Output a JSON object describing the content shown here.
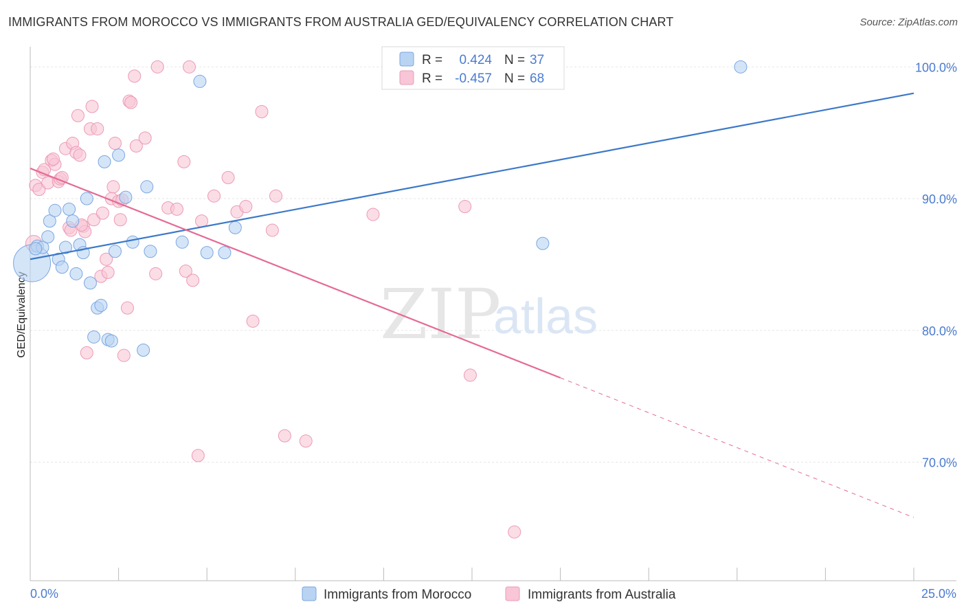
{
  "header": {
    "title": "IMMIGRANTS FROM MOROCCO VS IMMIGRANTS FROM AUSTRALIA GED/EQUIVALENCY CORRELATION CHART",
    "source": "Source: ZipAtlas.com"
  },
  "watermark": {
    "zip": "ZIP",
    "atlas": "atlas"
  },
  "legend": {
    "r_label": "R =",
    "n_label": "N =",
    "morocco": {
      "r": "0.424",
      "n": "37"
    },
    "australia": {
      "r": "-0.457",
      "n": "68"
    }
  },
  "colors": {
    "morocco_fill": "#b9d3f3",
    "morocco_stroke": "#7aa6e0",
    "morocco_line": "#3b78c9",
    "australia_fill": "#f8c6d6",
    "australia_stroke": "#ec9ab5",
    "australia_line": "#e46a95",
    "tick_text": "#4a7bd0",
    "grid": "#e6e6e6"
  },
  "chart_data": {
    "type": "scatter",
    "title": "IMMIGRANTS FROM MOROCCO VS IMMIGRANTS FROM AUSTRALIA GED/EQUIVALENCY CORRELATION CHART",
    "xlabel": "",
    "ylabel": "GED/Equivalency",
    "xlim": [
      0,
      25
    ],
    "ylim": [
      61,
      102
    ],
    "x_tick_labels": [
      "0.0%",
      "25.0%"
    ],
    "y_ticks": [
      70,
      80,
      90,
      100
    ],
    "y_tick_labels": [
      "70.0%",
      "80.0%",
      "90.0%",
      "100.0%"
    ],
    "grid": true,
    "legend_position": "top-center",
    "series": [
      {
        "name": "Immigrants from Morocco",
        "color": "#7aa6e0",
        "trend": {
          "x": [
            0,
            25
          ],
          "y": [
            85.4,
            98.0
          ],
          "dashed_from": null
        },
        "points": [
          [
            0.05,
            85.1,
            3.0
          ],
          [
            0.2,
            86.4,
            1
          ],
          [
            0.35,
            86.3,
            1
          ],
          [
            0.5,
            87.1,
            1
          ],
          [
            0.55,
            88.3,
            1
          ],
          [
            0.7,
            89.1,
            1
          ],
          [
            0.8,
            85.4,
            1
          ],
          [
            0.9,
            84.8,
            1
          ],
          [
            1.0,
            86.3,
            1
          ],
          [
            1.1,
            89.2,
            1
          ],
          [
            1.2,
            88.3,
            1
          ],
          [
            1.3,
            84.3,
            1
          ],
          [
            1.4,
            86.5,
            1
          ],
          [
            1.5,
            85.9,
            1
          ],
          [
            1.6,
            90.0,
            1
          ],
          [
            1.7,
            83.6,
            1
          ],
          [
            1.8,
            79.5,
            1
          ],
          [
            1.9,
            81.7,
            1
          ],
          [
            2.0,
            81.9,
            1
          ],
          [
            2.1,
            92.8,
            1
          ],
          [
            2.2,
            79.3,
            1
          ],
          [
            2.3,
            79.2,
            1
          ],
          [
            2.4,
            86.0,
            1
          ],
          [
            2.5,
            93.3,
            1
          ],
          [
            2.7,
            90.1,
            1
          ],
          [
            2.9,
            86.7,
            1
          ],
          [
            3.2,
            78.5,
            1
          ],
          [
            3.3,
            90.9,
            1
          ],
          [
            3.4,
            86.0,
            1
          ],
          [
            4.3,
            86.7,
            1
          ],
          [
            4.8,
            98.9,
            1
          ],
          [
            5.0,
            85.9,
            1
          ],
          [
            5.5,
            85.9,
            1
          ],
          [
            5.8,
            87.8,
            1
          ],
          [
            14.5,
            86.6,
            1
          ],
          [
            20.1,
            100.0,
            1
          ],
          [
            0.15,
            86.2,
            1
          ]
        ]
      },
      {
        "name": "Immigrants from Australia",
        "color": "#ec9ab5",
        "trend": {
          "x": [
            0,
            25
          ],
          "y": [
            92.3,
            65.8
          ],
          "dashed_from": 15
        },
        "points": [
          [
            0.1,
            86.6,
            1.3
          ],
          [
            0.15,
            91.0,
            1
          ],
          [
            0.25,
            90.7,
            1
          ],
          [
            0.35,
            92.0,
            1
          ],
          [
            0.4,
            92.2,
            1
          ],
          [
            0.5,
            91.2,
            1
          ],
          [
            0.6,
            92.9,
            1
          ],
          [
            0.7,
            92.6,
            1
          ],
          [
            0.8,
            91.3,
            1
          ],
          [
            0.85,
            91.5,
            1
          ],
          [
            0.9,
            91.6,
            1
          ],
          [
            1.0,
            93.8,
            1
          ],
          [
            1.1,
            87.8,
            1
          ],
          [
            1.15,
            87.6,
            1
          ],
          [
            1.2,
            94.2,
            1
          ],
          [
            1.3,
            93.5,
            1
          ],
          [
            1.35,
            96.3,
            1
          ],
          [
            1.4,
            93.3,
            1
          ],
          [
            1.5,
            87.9,
            1
          ],
          [
            1.55,
            87.5,
            1
          ],
          [
            1.6,
            78.3,
            1
          ],
          [
            1.7,
            95.3,
            1
          ],
          [
            1.75,
            97.0,
            1
          ],
          [
            1.8,
            88.4,
            1
          ],
          [
            1.9,
            95.3,
            1
          ],
          [
            2.0,
            84.1,
            1
          ],
          [
            2.05,
            88.9,
            1
          ],
          [
            2.15,
            85.4,
            1
          ],
          [
            2.2,
            84.4,
            1
          ],
          [
            2.3,
            90.0,
            1
          ],
          [
            2.35,
            90.9,
            1
          ],
          [
            2.4,
            94.2,
            1
          ],
          [
            2.5,
            89.8,
            1
          ],
          [
            2.55,
            88.4,
            1
          ],
          [
            2.6,
            89.9,
            1
          ],
          [
            2.65,
            78.1,
            1
          ],
          [
            2.75,
            81.7,
            1
          ],
          [
            2.8,
            97.4,
            1
          ],
          [
            2.85,
            97.3,
            1
          ],
          [
            2.95,
            99.3,
            1
          ],
          [
            3.0,
            94.0,
            1
          ],
          [
            3.25,
            94.6,
            1
          ],
          [
            3.55,
            84.3,
            1
          ],
          [
            3.6,
            100.0,
            1
          ],
          [
            3.9,
            89.3,
            1
          ],
          [
            4.15,
            89.2,
            1
          ],
          [
            4.35,
            92.8,
            1
          ],
          [
            4.4,
            84.5,
            1
          ],
          [
            4.5,
            100.0,
            1
          ],
          [
            4.6,
            83.8,
            1
          ],
          [
            4.75,
            70.5,
            1
          ],
          [
            4.85,
            88.3,
            1
          ],
          [
            5.2,
            90.2,
            1
          ],
          [
            5.6,
            91.6,
            1
          ],
          [
            5.85,
            89.0,
            1
          ],
          [
            6.1,
            89.4,
            1
          ],
          [
            6.3,
            80.7,
            1
          ],
          [
            6.55,
            96.6,
            1
          ],
          [
            6.85,
            87.6,
            1
          ],
          [
            6.95,
            90.2,
            1
          ],
          [
            7.2,
            72.0,
            1
          ],
          [
            7.8,
            71.6,
            1
          ],
          [
            9.7,
            88.8,
            1
          ],
          [
            12.3,
            89.4,
            1
          ],
          [
            12.45,
            76.6,
            1
          ],
          [
            13.7,
            64.7,
            1
          ],
          [
            0.65,
            93.0,
            1
          ],
          [
            1.45,
            88.0,
            1
          ]
        ]
      }
    ]
  },
  "bottom_legend": {
    "morocco": "Immigrants from Morocco",
    "australia": "Immigrants from Australia"
  }
}
